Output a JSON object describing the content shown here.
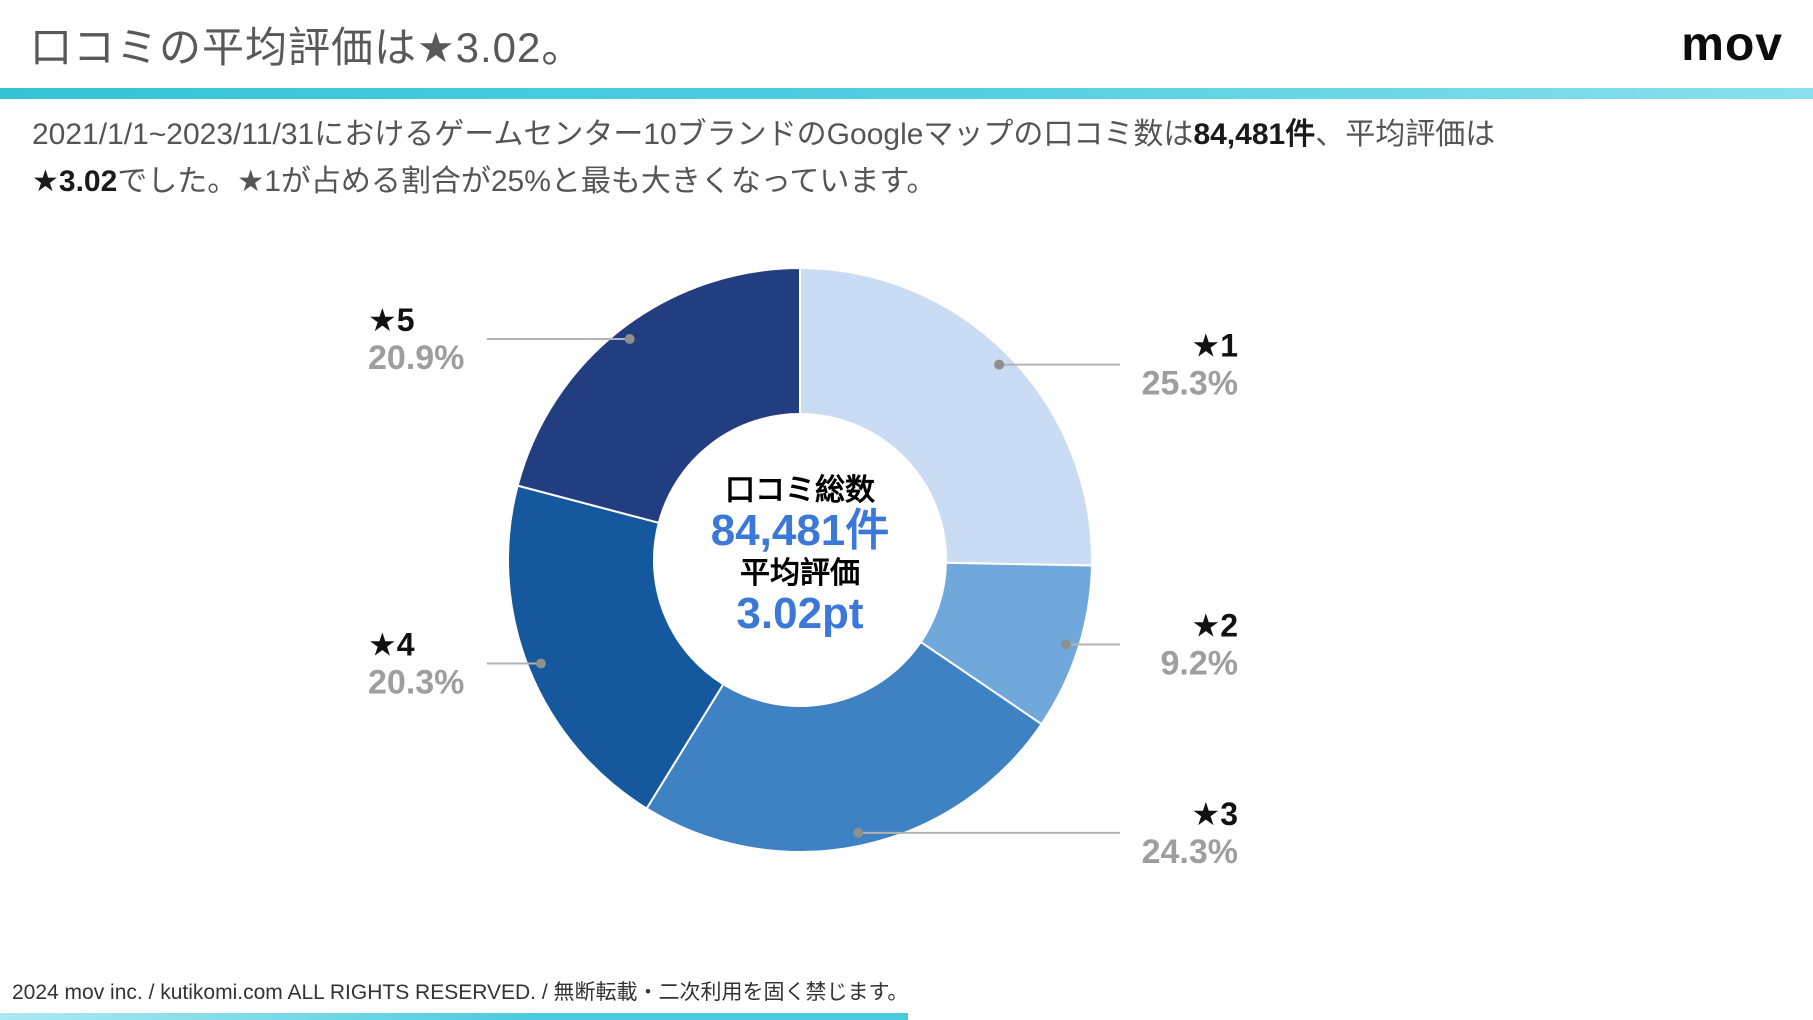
{
  "header": {
    "title": "口コミの平均評価は★3.02。",
    "logo": "mov"
  },
  "intro": {
    "segments": [
      {
        "text": "2021/1/1~2023/11/31におけるゲームセンター10ブランドのGoogleマップの口コミ数は",
        "bold": false
      },
      {
        "text": "84,481件",
        "bold": true
      },
      {
        "text": "、平均評価は",
        "bold": false
      },
      {
        "text": "★3.02",
        "bold": true
      },
      {
        "text": "でした。★1が占める割合が25%と最も大きくなっています。",
        "bold": false
      }
    ]
  },
  "chart_data": {
    "type": "pie",
    "subtype": "donut",
    "title": "口コミの平均評価は★3.02。",
    "categories": [
      "★1",
      "★2",
      "★3",
      "★4",
      "★5"
    ],
    "values": [
      25.3,
      9.2,
      24.3,
      20.3,
      20.9
    ],
    "unit": "%",
    "colors": [
      "#C9DCF3",
      "#71A8DC",
      "#3E82C4",
      "#15589E",
      "#233E80"
    ],
    "start_angle_deg": 0,
    "direction": "clockwise",
    "legend_position": "none",
    "center_labels": [
      {
        "text": "口コミ総数",
        "style": "black"
      },
      {
        "text": "84,481件",
        "style": "blue"
      },
      {
        "text": "平均評価",
        "style": "black"
      },
      {
        "text": "3.02pt",
        "style": "blue"
      }
    ],
    "total_reviews": "84,481件",
    "average_rating": "3.02pt"
  },
  "footer": {
    "text": "2024 mov inc. / kutikomi.com ALL RIGHTS RESERVED. / 無断転載・二次利用を固く禁じます。"
  },
  "colors": {
    "accent_cyan": "#49CADD",
    "value_blue": "#3C78D8",
    "percent_gray": "#9E9E9E",
    "leader_line": "#B3B3B3"
  }
}
